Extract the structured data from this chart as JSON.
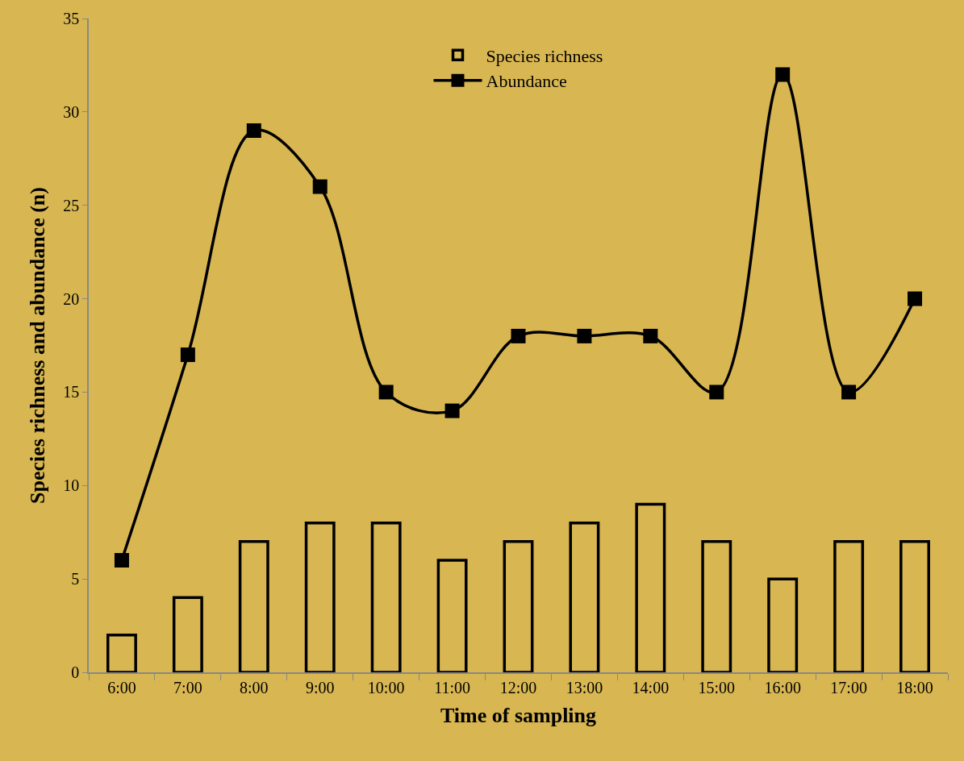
{
  "chart_data": {
    "type": "bar",
    "xlabel": "Time of sampling",
    "ylabel": "Species richness and abundance (n)",
    "categories": [
      "6:00",
      "7:00",
      "8:00",
      "9:00",
      "10:00",
      "11:00",
      "12:00",
      "13:00",
      "14:00",
      "15:00",
      "16:00",
      "17:00",
      "18:00"
    ],
    "series": [
      {
        "name": "Species richness",
        "color": "#000000",
        "values": [
          2,
          4,
          7,
          8,
          8,
          6,
          7,
          8,
          9,
          7,
          5,
          7,
          7
        ]
      },
      {
        "name": "Abundance",
        "type": "line",
        "color": "#000000",
        "marker": "square",
        "line_style": "solid",
        "values": [
          6,
          17,
          29,
          26,
          15,
          14,
          18,
          18,
          18,
          15,
          32,
          15,
          20
        ]
      }
    ],
    "ylim": [
      0,
      35
    ],
    "yticks": [
      0,
      5,
      10,
      15,
      20,
      25,
      30,
      35
    ],
    "grid": false,
    "legend": "top"
  }
}
